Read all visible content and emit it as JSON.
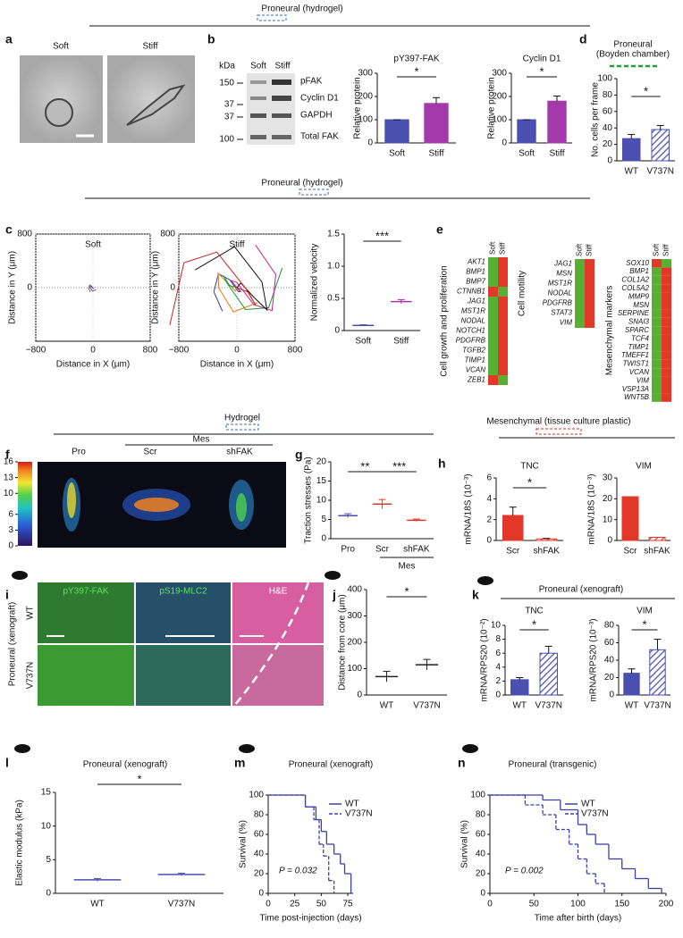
{
  "header_top": {
    "title": "Proneural (hydrogel)"
  },
  "a": {
    "label": "a",
    "soft": "Soft",
    "stiff": "Stiff"
  },
  "b": {
    "label": "b",
    "blot": {
      "unit": "kDa",
      "lanes": [
        "Soft",
        "Stiff"
      ],
      "markers": [
        150,
        37,
        37,
        100
      ],
      "bands": [
        "pFAK",
        "Cyclin D1",
        "GAPDH",
        "Total FAK"
      ]
    },
    "charts": [
      {
        "type": "bar",
        "title": "pY397-FAK",
        "ylabel": "Relative protein",
        "categories": [
          "Soft",
          "Stiff"
        ],
        "values": [
          100,
          170
        ],
        "errors": [
          0,
          25
        ],
        "colors": [
          "#4b4fb0",
          "#a23aac"
        ],
        "ylim": [
          0,
          300
        ],
        "yticks": [
          0,
          100,
          200,
          300
        ],
        "significance": [
          "*"
        ]
      },
      {
        "type": "bar",
        "title": "Cyclin D1",
        "ylabel": "Relative protein",
        "categories": [
          "Soft",
          "Stiff"
        ],
        "values": [
          100,
          180
        ],
        "errors": [
          0,
          22
        ],
        "colors": [
          "#4b4fb0",
          "#a23aac"
        ],
        "ylim": [
          0,
          300
        ],
        "yticks": [
          0,
          100,
          200,
          300
        ],
        "significance": [
          "*"
        ]
      }
    ]
  },
  "d": {
    "label": "d",
    "title": "Proneural",
    "subtitle": "(Boyden chamber)",
    "chart": {
      "type": "bar",
      "ylabel": "No. cells per frame",
      "categories": [
        "WT",
        "V737N"
      ],
      "values": [
        27,
        38
      ],
      "errors": [
        5,
        5
      ],
      "colors": [
        "#4b4fb0",
        "#4b4fb0"
      ],
      "hatched": [
        false,
        true
      ],
      "ylim": [
        0,
        100
      ],
      "yticks": [
        0,
        20,
        40,
        60,
        80,
        100
      ],
      "significance": [
        "*"
      ]
    }
  },
  "header_c": {
    "title": "Proneural (hydrogel)"
  },
  "c": {
    "label": "c",
    "plots": [
      {
        "title": "Soft",
        "ylabel": "Distance in Y (μm)",
        "xlabel": "Distance in X (μm)",
        "xlim": [
          -800,
          800
        ],
        "ylim": [
          -800,
          800
        ],
        "xticks": [
          {
            "value": -800,
            "label": "−800"
          },
          0,
          800
        ],
        "yticks": [
          0,
          800
        ]
      },
      {
        "title": "Stiff",
        "ylabel": "Distance in Y (μm)",
        "xlabel": "Distance in X (μm)",
        "xlim": [
          -800,
          800
        ],
        "ylim": [
          -800,
          800
        ],
        "xticks": [
          {
            "value": -800,
            "label": "−800"
          },
          0,
          800
        ],
        "yticks": [
          0,
          800
        ]
      }
    ],
    "chart": {
      "type": "dot",
      "ylabel": "Normalized velocity",
      "categories": [
        "Soft",
        "Stiff"
      ],
      "values": [
        0.08,
        0.45
      ],
      "errors": [
        0.01,
        0.03
      ],
      "colors": [
        "#4b4fb0",
        "#a23aac"
      ],
      "ylim": [
        0,
        1.5
      ],
      "yticks": [
        0,
        0.5,
        {
          "value": 1,
          "label": "1.0"
        },
        1.5
      ],
      "significance": [
        "***"
      ]
    }
  },
  "e": {
    "label": "e",
    "columns": [
      "Soft",
      "Stiff"
    ],
    "groups": [
      {
        "name": "Cell growth and proliferation",
        "genes": [
          "AKT1",
          "BMP1",
          "BMP7",
          "CTNNB1",
          "JAG1",
          "MST1R",
          "NODAL",
          "NOTCH1",
          "PDGFRB",
          "TGFB2",
          "TIMP1",
          "VCAN",
          "ZEB1"
        ],
        "colors": [
          [
            "#57b031",
            "#e2382a"
          ],
          [
            "#57b031",
            "#e2382a"
          ],
          [
            "#57b031",
            "#e2382a"
          ],
          [
            "#e2382a",
            "#57b031"
          ],
          [
            "#57b031",
            "#e2382a"
          ],
          [
            "#57b031",
            "#e2382a"
          ],
          [
            "#57b031",
            "#e2382a"
          ],
          [
            "#57b031",
            "#e2382a"
          ],
          [
            "#57b031",
            "#e2382a"
          ],
          [
            "#57b031",
            "#e2382a"
          ],
          [
            "#57b031",
            "#e2382a"
          ],
          [
            "#57b031",
            "#e2382a"
          ],
          [
            "#e2382a",
            "#57b031"
          ]
        ]
      },
      {
        "name": "Cell motility",
        "genes": [
          "JAG1",
          "MSN",
          "MST1R",
          "NODAL",
          "PDGFRB",
          "STAT3",
          "VIM"
        ],
        "colors": [
          [
            "#57b031",
            "#e2382a"
          ],
          [
            "#57b031",
            "#e2382a"
          ],
          [
            "#57b031",
            "#e2382a"
          ],
          [
            "#57b031",
            "#e2382a"
          ],
          [
            "#57b031",
            "#e2382a"
          ],
          [
            "#57b031",
            "#e2382a"
          ],
          [
            "#57b031",
            "#e2382a"
          ]
        ]
      },
      {
        "name": "Mesenchymal markers",
        "genes": [
          "SOX10",
          "BMP1",
          "COL1A2",
          "COL5A2",
          "MMP9",
          "MSN",
          "SERPINE",
          "SNAI3",
          "SPARC",
          "TCF4",
          "TIMP1",
          "TMEFF1",
          "TWIST1",
          "VCAN",
          "VIM",
          "VSP13A",
          "WNT5B"
        ],
        "colors": [
          [
            "#e2382a",
            "#57b031"
          ],
          [
            "#57b031",
            "#e2382a"
          ],
          [
            "#57b031",
            "#e2382a"
          ],
          [
            "#57b031",
            "#e2382a"
          ],
          [
            "#57b031",
            "#e2382a"
          ],
          [
            "#57b031",
            "#e2382a"
          ],
          [
            "#57b031",
            "#e2382a"
          ],
          [
            "#57b031",
            "#e2382a"
          ],
          [
            "#57b031",
            "#e2382a"
          ],
          [
            "#57b031",
            "#e2382a"
          ],
          [
            "#57b031",
            "#e2382a"
          ],
          [
            "#57b031",
            "#e2382a"
          ],
          [
            "#57b031",
            "#e2382a"
          ],
          [
            "#57b031",
            "#e2382a"
          ],
          [
            "#57b031",
            "#e2382a"
          ],
          [
            "#57b031",
            "#e2382a"
          ],
          [
            "#57b031",
            "#e2382a"
          ]
        ]
      }
    ]
  },
  "header_f": {
    "title": "Hydrogel"
  },
  "f": {
    "label": "f",
    "colorbar": {
      "lim": [
        0,
        16
      ],
      "ticks": [
        0,
        3,
        6,
        10,
        13,
        16
      ]
    },
    "columns": [
      "Pro",
      "Scr",
      "shFAK"
    ],
    "group": "Mes"
  },
  "g": {
    "label": "g",
    "group": "Mes",
    "chart": {
      "type": "dot",
      "ylabel": "Traction stresses (Pa)",
      "categories": [
        "Pro",
        "Scr",
        "shFAK"
      ],
      "values": [
        6,
        9,
        4.8
      ],
      "errors": [
        0.5,
        1.2,
        0.3
      ],
      "colors": [
        "#4b4fb0",
        "#e2382a",
        "#e2382a"
      ],
      "ylim": [
        0,
        20
      ],
      "yticks": [
        0,
        5,
        10,
        15,
        20
      ],
      "significance": [
        "**",
        "***"
      ]
    }
  },
  "h": {
    "label": "h",
    "title": "Mesenchymal (tissue culture plastic)",
    "charts": [
      {
        "type": "bar",
        "title": "TNC",
        "ylabel": "mRNA/18S (10⁻³)",
        "categories": [
          "Scr",
          "shFAK"
        ],
        "values": [
          2.4,
          0.15
        ],
        "errors": [
          0.8,
          0.05
        ],
        "colors": [
          "#e2382a",
          "#e2382a"
        ],
        "hatched": [
          false,
          true
        ],
        "ylim": [
          0,
          6
        ],
        "yticks": [
          0,
          2,
          4,
          6
        ],
        "significance": [
          "*"
        ]
      },
      {
        "type": "bar",
        "title": "VIM",
        "ylabel": "mRNA/18S (10⁻³)",
        "categories": [
          "Scr",
          "shFAK"
        ],
        "values": [
          21,
          1.5
        ],
        "colors": [
          "#e2382a",
          "#e2382a"
        ],
        "hatched": [
          false,
          true
        ],
        "ylim": [
          0,
          30
        ],
        "yticks": [
          0,
          10,
          20,
          30
        ]
      }
    ]
  },
  "i": {
    "label": "i",
    "columns": [
      "pY397-FAK",
      "pS19-MLC2",
      "H&E"
    ],
    "rows": [
      "WT",
      "V737N"
    ],
    "side": "Proneural (xenograft)"
  },
  "j": {
    "label": "j",
    "chart": {
      "type": "dot",
      "ylabel": "Distance from core (μm)",
      "categories": [
        "WT",
        "V737N"
      ],
      "values": [
        70,
        115
      ],
      "errors": [
        20,
        20
      ],
      "colors": [
        "#222",
        "#222"
      ],
      "ylim": [
        0,
        400
      ],
      "yticks": [
        0,
        100,
        200,
        300,
        400
      ],
      "significance": [
        "*"
      ]
    }
  },
  "k": {
    "label": "k",
    "title": "Proneural (xenograft)",
    "charts": [
      {
        "type": "bar",
        "title": "TNC",
        "ylabel": "mRNA/RPS20 (10⁻²)",
        "categories": [
          "WT",
          "V737N"
        ],
        "values": [
          2.2,
          6
        ],
        "errors": [
          0.3,
          1
        ],
        "colors": [
          "#4b4fb0",
          "#4b4fb0"
        ],
        "hatched": [
          false,
          true
        ],
        "ylim": [
          0,
          10
        ],
        "yticks": [
          0,
          2,
          4,
          6,
          8,
          10
        ],
        "significance": [
          "*"
        ]
      },
      {
        "type": "bar",
        "title": "VIM",
        "ylabel": "mRNA/RPS20 (10⁻³)",
        "categories": [
          "WT",
          "V737N"
        ],
        "values": [
          25,
          52
        ],
        "errors": [
          5,
          12
        ],
        "colors": [
          "#4b4fb0",
          "#4b4fb0"
        ],
        "hatched": [
          false,
          true
        ],
        "ylim": [
          0,
          80
        ],
        "yticks": [
          0,
          20,
          40,
          60,
          80
        ],
        "significance": [
          "*"
        ]
      }
    ]
  },
  "l": {
    "label": "l",
    "chart": {
      "type": "dot",
      "title": "Proneural (xenograft)",
      "ylabel": "Elastic modulus (kPa)",
      "categories": [
        "WT",
        "V737N"
      ],
      "values": [
        2,
        2.8
      ],
      "errors": [
        0.2,
        0.2
      ],
      "colors": [
        "#4b4fb0",
        "#4b4fb0"
      ],
      "ylim": [
        0,
        15
      ],
      "yticks": [
        0,
        5,
        10,
        15
      ],
      "significance": [
        "*"
      ]
    }
  },
  "m": {
    "label": "m",
    "chart": {
      "type": "survival",
      "title": "Proneural (xenograft)",
      "ylabel": "Survival (%)",
      "xlabel": "Time post-injection (days)",
      "pvalue": "P = 0.032",
      "xlim": [
        0,
        80
      ],
      "xticks": [
        0,
        25,
        50,
        75
      ],
      "ylim": [
        0,
        100
      ],
      "yticks": [
        0,
        20,
        40,
        60,
        80,
        100
      ],
      "series": [
        {
          "name": "WT",
          "color": "#3b40a8",
          "dashed": false,
          "x": [
            0,
            35,
            45,
            50,
            55,
            62,
            68,
            72,
            78
          ],
          "values": [
            100,
            88,
            75,
            63,
            50,
            40,
            30,
            20,
            0
          ]
        },
        {
          "name": "V737N",
          "color": "#3b40a8",
          "dashed": true,
          "x": [
            0,
            35,
            43,
            48,
            52,
            57,
            62
          ],
          "values": [
            100,
            88,
            75,
            50,
            38,
            13,
            0
          ]
        }
      ]
    }
  },
  "n": {
    "label": "n",
    "chart": {
      "type": "survival",
      "title": "Proneural (transgenic)",
      "ylabel": "Survival (%)",
      "xlabel": "Time after birth (days)",
      "pvalue": "P = 0.002",
      "xlim": [
        0,
        200
      ],
      "xticks": [
        0,
        50,
        100,
        150,
        200
      ],
      "ylim": [
        0,
        100
      ],
      "yticks": [
        0,
        20,
        40,
        60,
        80,
        100
      ],
      "series": [
        {
          "name": "WT",
          "color": "#3b40a8",
          "dashed": false,
          "x": [
            0,
            60,
            80,
            100,
            110,
            120,
            135,
            150,
            165,
            180,
            195
          ],
          "values": [
            100,
            95,
            85,
            70,
            60,
            50,
            35,
            25,
            15,
            5,
            0
          ]
        },
        {
          "name": "V737N",
          "color": "#3b40a8",
          "dashed": true,
          "x": [
            0,
            40,
            60,
            75,
            90,
            100,
            110,
            120,
            130
          ],
          "values": [
            100,
            90,
            80,
            65,
            50,
            35,
            20,
            10,
            0
          ]
        }
      ]
    }
  }
}
